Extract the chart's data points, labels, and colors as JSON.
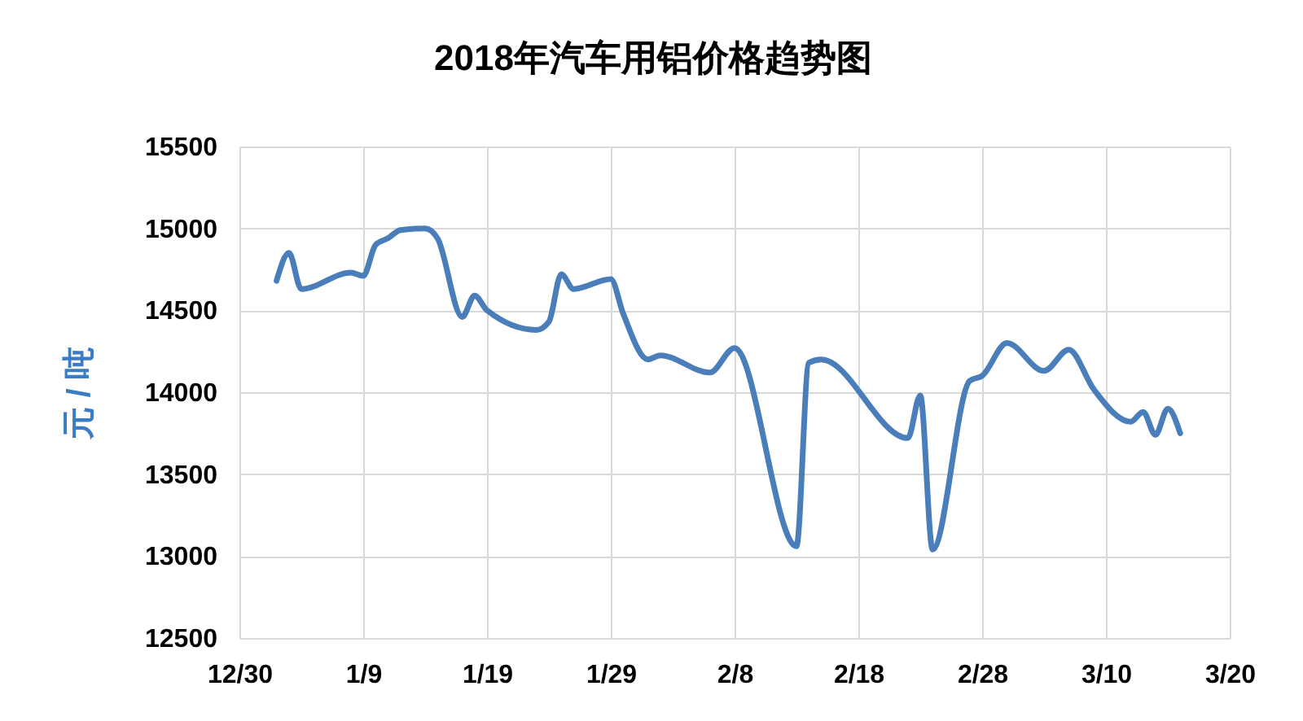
{
  "chart_data": {
    "type": "line",
    "title": "2018年汽车用铝价格趋势图",
    "ylabel": "元 / 吨",
    "x": [
      "2018-01-02",
      "2018-01-03",
      "2018-01-04",
      "2018-01-08",
      "2018-01-09",
      "2018-01-10",
      "2018-01-11",
      "2018-01-12",
      "2018-01-14",
      "2018-01-15",
      "2018-01-17",
      "2018-01-18",
      "2018-01-19",
      "2018-01-23",
      "2018-01-24",
      "2018-01-25",
      "2018-01-26",
      "2018-01-29",
      "2018-01-30",
      "2018-02-01",
      "2018-02-02",
      "2018-02-06",
      "2018-02-08",
      "2018-02-13",
      "2018-02-14",
      "2018-02-15",
      "2018-02-22",
      "2018-02-23",
      "2018-02-24",
      "2018-02-27",
      "2018-02-28",
      "2018-03-02",
      "2018-03-05",
      "2018-03-07",
      "2018-03-09",
      "2018-03-12",
      "2018-03-13",
      "2018-03-14",
      "2018-03-15",
      "2018-03-16"
    ],
    "series": [
      {
        "color": "#4a7ebb",
        "values": [
          14680,
          14850,
          14630,
          14730,
          14710,
          14900,
          14940,
          14990,
          15000,
          14940,
          14460,
          14590,
          14500,
          14380,
          14430,
          14720,
          14630,
          14690,
          14480,
          14200,
          14225,
          14120,
          14270,
          13060,
          14180,
          14200,
          13720,
          13980,
          13040,
          14070,
          14100,
          14300,
          14130,
          14260,
          14020,
          13820,
          13880,
          13740,
          13900,
          13750
        ]
      }
    ],
    "xlim": [
      "2017-12-30",
      "2018-03-20"
    ],
    "xticks": [
      {
        "value": "2017-12-30",
        "label": "12/30"
      },
      {
        "value": "2018-01-09",
        "label": "1/9"
      },
      {
        "value": "2018-01-19",
        "label": "1/19"
      },
      {
        "value": "2018-01-29",
        "label": "1/29"
      },
      {
        "value": "2018-02-08",
        "label": "2/8"
      },
      {
        "value": "2018-02-18",
        "label": "2/18"
      },
      {
        "value": "2018-02-28",
        "label": "2/28"
      },
      {
        "value": "2018-03-10",
        "label": "3/10"
      },
      {
        "value": "2018-03-20",
        "label": "3/20"
      }
    ],
    "ylim": [
      12500,
      15500
    ],
    "yticks": [
      12500,
      13000,
      13500,
      14000,
      14500,
      15000,
      15500
    ],
    "grid": true,
    "marker": "none",
    "line_style": "solid"
  }
}
